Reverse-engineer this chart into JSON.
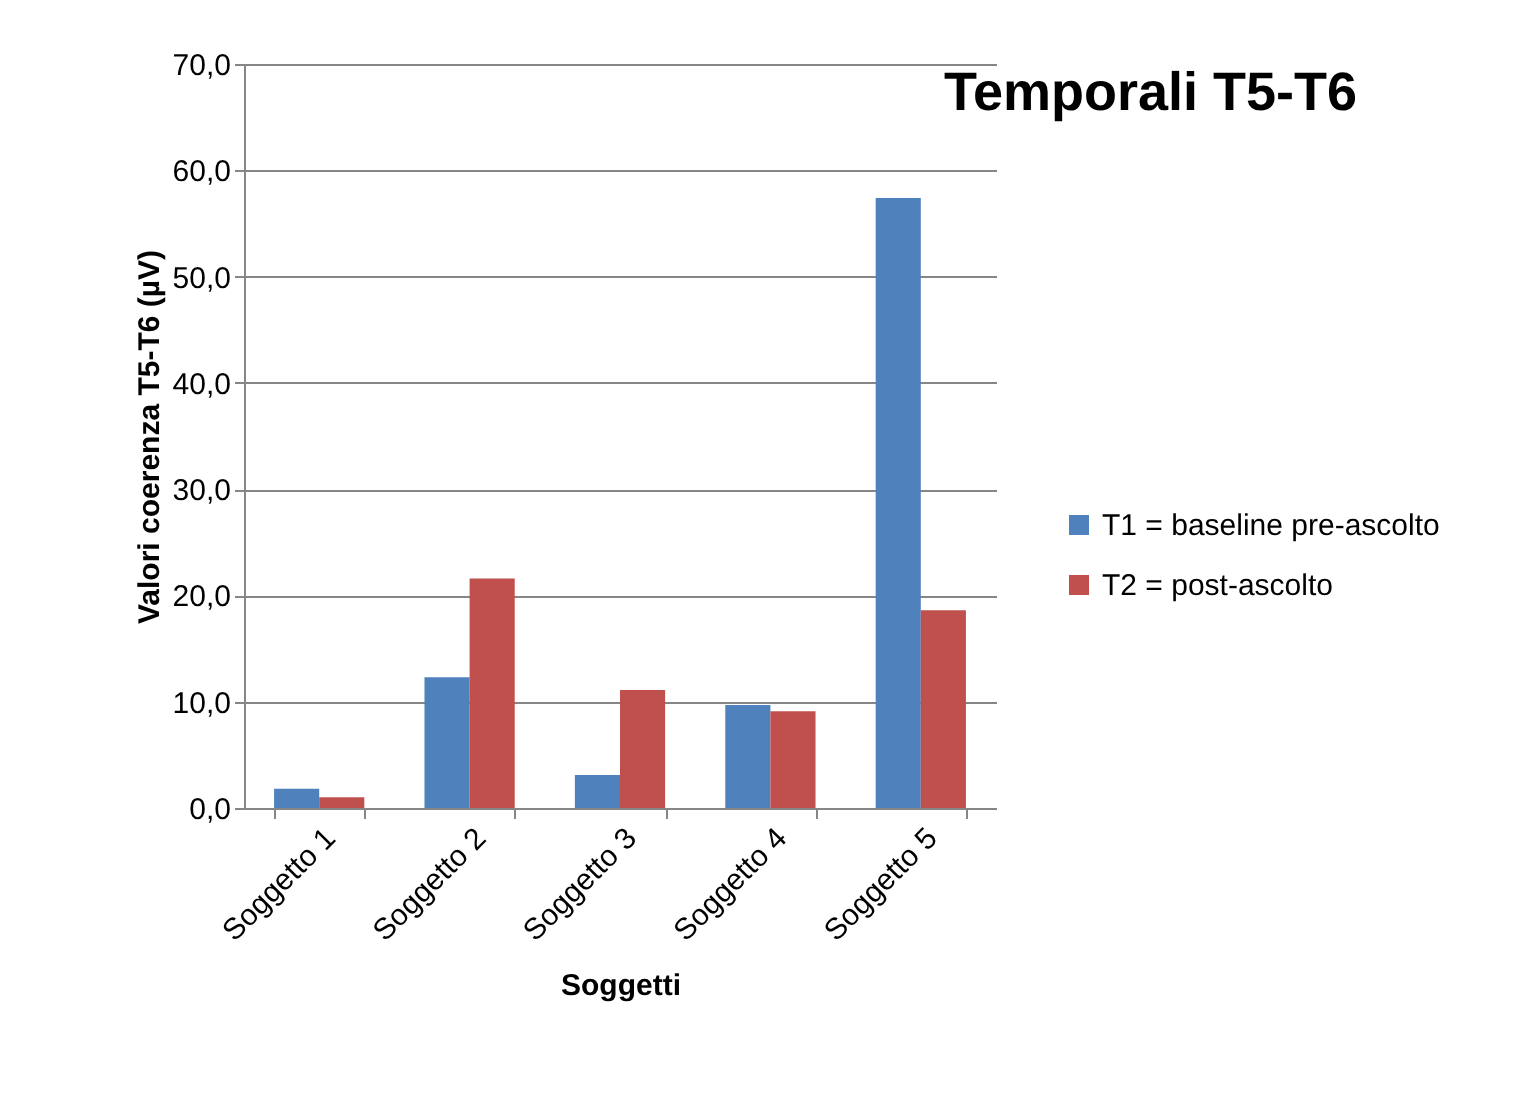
{
  "chart_data": {
    "type": "bar",
    "title": "Temporali T5-T6",
    "xlabel": "Soggetti",
    "ylabel": "Valori coerenza T5-T6 (µV)",
    "categories": [
      "Soggetto 1",
      "Soggetto 2",
      "Soggetto 3",
      "Soggetto 4",
      "Soggetto 5"
    ],
    "series": [
      {
        "name": "T1 = baseline pre-ascolto",
        "color": "#4f81bd",
        "values": [
          1.8,
          12.3,
          3.1,
          9.7,
          57.4
        ]
      },
      {
        "name": "T2 = post-ascolto",
        "color": "#c0504d",
        "values": [
          1.0,
          21.6,
          11.1,
          9.1,
          18.6
        ]
      }
    ],
    "ylim": [
      0,
      70
    ],
    "yticks": [
      {
        "value": 0,
        "label": "0,0"
      },
      {
        "value": 10,
        "label": "10,0"
      },
      {
        "value": 20,
        "label": "20,0"
      },
      {
        "value": 30,
        "label": "30,0"
      },
      {
        "value": 40,
        "label": "40,0"
      },
      {
        "value": 50,
        "label": "50,0"
      },
      {
        "value": 60,
        "label": "60,0"
      },
      {
        "value": 70,
        "label": "70,0"
      }
    ],
    "grid": "y",
    "legend": "right"
  }
}
